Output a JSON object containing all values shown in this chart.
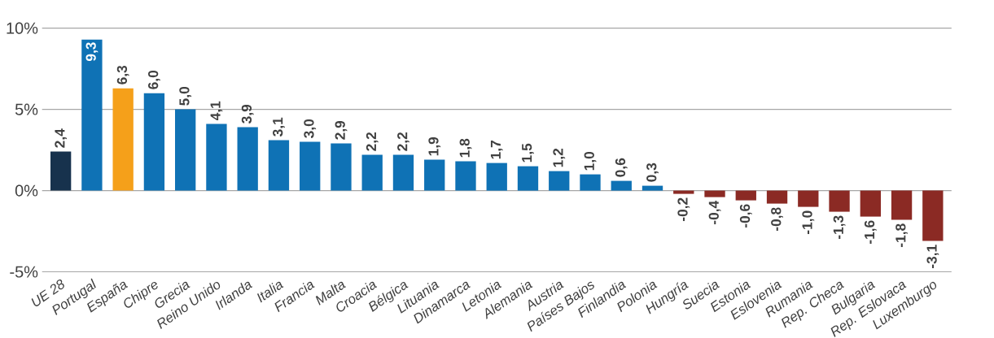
{
  "chart_data": {
    "type": "bar",
    "categories": [
      "UE 28",
      "Portugal",
      "España",
      "Chipre",
      "Grecia",
      "Reino Unido",
      "Irlanda",
      "Italia",
      "Francia",
      "Malta",
      "Croacia",
      "Bélgica",
      "Lituania",
      "Dinamarca",
      "Letonia",
      "Alemania",
      "Austria",
      "Países Bajos",
      "Finlandia",
      "Polonia",
      "Hungría",
      "Suecia",
      "Estonia",
      "Eslovenia",
      "Rumania",
      "Rep. Checa",
      "Bulgaria",
      "Rep. Eslovaca",
      "Luxemburgo"
    ],
    "values": [
      2.4,
      9.3,
      6.3,
      6.0,
      5.0,
      4.1,
      3.9,
      3.1,
      3.0,
      2.9,
      2.2,
      2.2,
      1.9,
      1.8,
      1.7,
      1.5,
      1.2,
      1.0,
      0.6,
      0.3,
      -0.2,
      -0.4,
      -0.6,
      -0.8,
      -1.0,
      -1.3,
      -1.6,
      -1.8,
      -3.1
    ],
    "value_labels": [
      "2,4",
      "9,3",
      "6,3",
      "6,0",
      "5,0",
      "4,1",
      "3,9",
      "3,1",
      "3,0",
      "2,9",
      "2,2",
      "2,2",
      "1,9",
      "1,8",
      "1,7",
      "1,5",
      "1,2",
      "1,0",
      "0,6",
      "0,3",
      "-0,2",
      "-0,4",
      "-0,6",
      "-0,8",
      "-1,0",
      "-1,3",
      "-1,6",
      "-1,8",
      "-3,1"
    ],
    "colors": [
      "#17324d",
      "#0f72b5",
      "#f5a01a",
      "#0f72b5",
      "#0f72b5",
      "#0f72b5",
      "#0f72b5",
      "#0f72b5",
      "#0f72b5",
      "#0f72b5",
      "#0f72b5",
      "#0f72b5",
      "#0f72b5",
      "#0f72b5",
      "#0f72b5",
      "#0f72b5",
      "#0f72b5",
      "#0f72b5",
      "#0f72b5",
      "#0f72b5",
      "#8b2a24",
      "#8b2a24",
      "#8b2a24",
      "#8b2a24",
      "#8b2a24",
      "#8b2a24",
      "#8b2a24",
      "#8b2a24",
      "#8b2a24"
    ],
    "ylim": [
      -5,
      10
    ],
    "yticks": [
      {
        "value": -5,
        "label": "-5%"
      },
      {
        "value": 0,
        "label": "0%"
      },
      {
        "value": 5,
        "label": "5%"
      },
      {
        "value": 10,
        "label": "10%"
      }
    ],
    "grid": "y"
  }
}
